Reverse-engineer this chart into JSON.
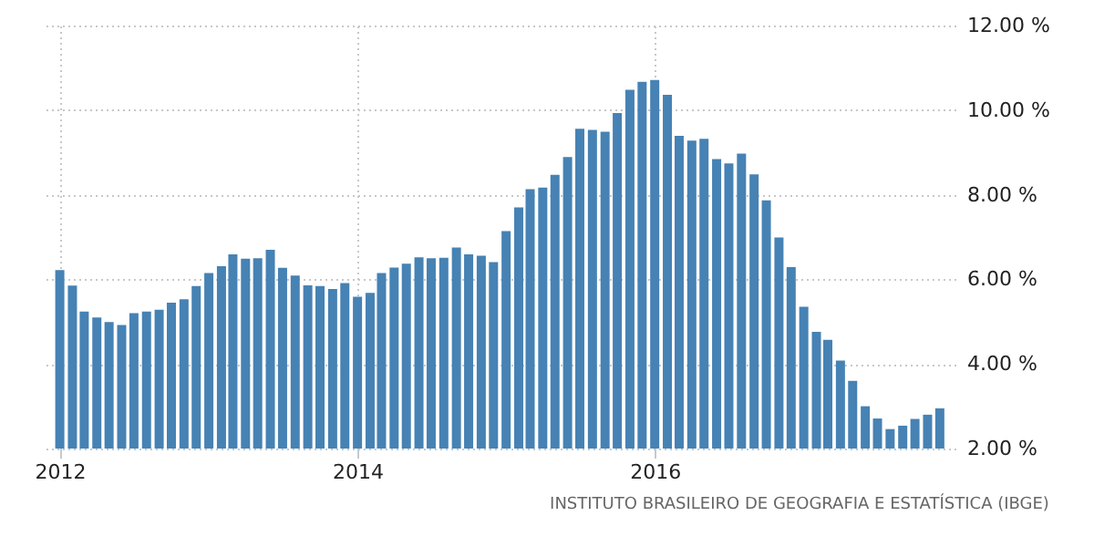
{
  "chart_data": {
    "type": "bar",
    "x": [
      "2012-01",
      "2012-02",
      "2012-03",
      "2012-04",
      "2012-05",
      "2012-06",
      "2012-07",
      "2012-08",
      "2012-09",
      "2012-10",
      "2012-11",
      "2012-12",
      "2013-01",
      "2013-02",
      "2013-03",
      "2013-04",
      "2013-05",
      "2013-06",
      "2013-07",
      "2013-08",
      "2013-09",
      "2013-10",
      "2013-11",
      "2013-12",
      "2014-01",
      "2014-02",
      "2014-03",
      "2014-04",
      "2014-05",
      "2014-06",
      "2014-07",
      "2014-08",
      "2014-09",
      "2014-10",
      "2014-11",
      "2014-12",
      "2015-01",
      "2015-02",
      "2015-03",
      "2015-04",
      "2015-05",
      "2015-06",
      "2015-07",
      "2015-08",
      "2015-09",
      "2015-10",
      "2015-11",
      "2015-12",
      "2016-01",
      "2016-02",
      "2016-03",
      "2016-04",
      "2016-05",
      "2016-06",
      "2016-07",
      "2016-08",
      "2016-09",
      "2016-10",
      "2016-11",
      "2016-12",
      "2017-01",
      "2017-02",
      "2017-03",
      "2017-04",
      "2017-05",
      "2017-06",
      "2017-07",
      "2017-08",
      "2017-09",
      "2017-10",
      "2017-11",
      "2017-12"
    ],
    "values": [
      6.22,
      5.85,
      5.24,
      5.1,
      4.99,
      4.92,
      5.2,
      5.24,
      5.28,
      5.45,
      5.53,
      5.84,
      6.15,
      6.31,
      6.59,
      6.49,
      6.5,
      6.7,
      6.27,
      6.09,
      5.86,
      5.84,
      5.77,
      5.91,
      5.59,
      5.68,
      6.15,
      6.28,
      6.37,
      6.52,
      6.5,
      6.51,
      6.75,
      6.59,
      6.56,
      6.41,
      7.14,
      7.7,
      8.13,
      8.17,
      8.47,
      8.89,
      9.56,
      9.53,
      9.49,
      9.93,
      10.48,
      10.67,
      10.71,
      10.36,
      9.39,
      9.28,
      9.32,
      8.84,
      8.74,
      8.97,
      8.48,
      7.87,
      6.99,
      6.29,
      5.35,
      4.76,
      4.57,
      4.08,
      3.6,
      3.0,
      2.71,
      2.46,
      2.54,
      2.7,
      2.8,
      2.95
    ],
    "color": "#4682b4",
    "xlim": [
      "2011-12-15",
      "2017-12-17"
    ],
    "xticks": [
      {
        "value": "2012-01",
        "label": "2012"
      },
      {
        "value": "2014-01",
        "label": "2014"
      },
      {
        "value": "2016-01",
        "label": "2016"
      }
    ],
    "ylim": [
      2,
      12
    ],
    "yticks": [
      {
        "value": 2,
        "label": "2.00 %"
      },
      {
        "value": 4,
        "label": "4.00 %"
      },
      {
        "value": 6,
        "label": "6.00 %"
      },
      {
        "value": 8,
        "label": "8.00 %"
      },
      {
        "value": 10,
        "label": "10.00 %"
      },
      {
        "value": 12,
        "label": "12.00 %"
      }
    ],
    "grid": true,
    "annotations": [
      "INSTITUTO BRASILEIRO DE GEOGRAFIA E ESTATÍSTICA (IBGE)"
    ]
  }
}
